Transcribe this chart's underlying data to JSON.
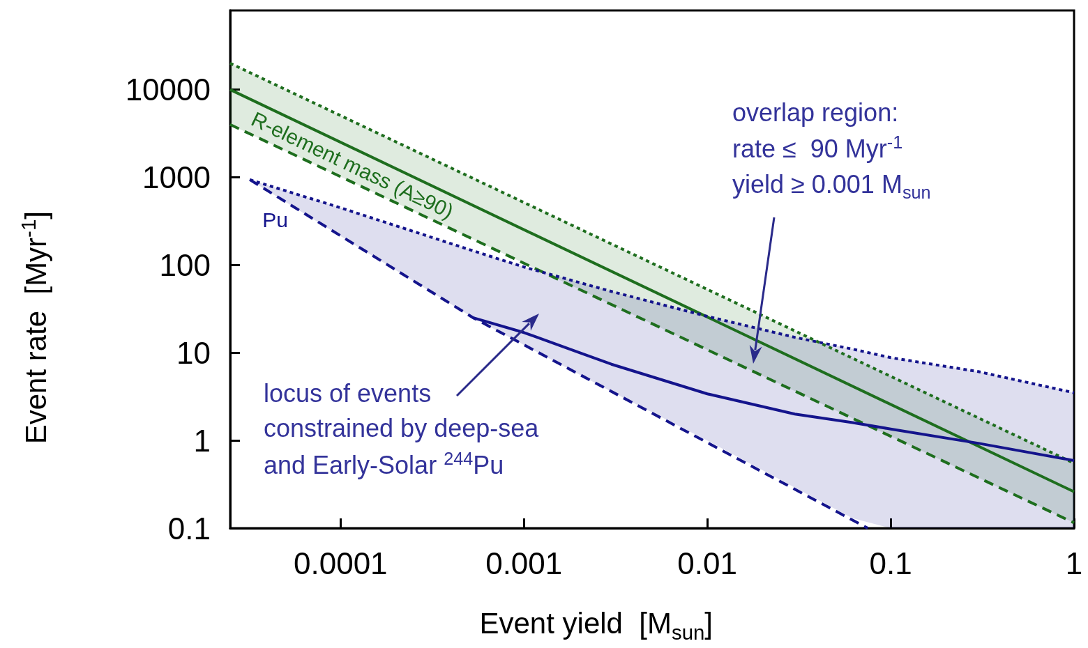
{
  "chart_data": {
    "type": "line",
    "xlabel": "Event yield  [M$_{sun}$]",
    "ylabel": "Event rate  [Myr$^{-1}$]",
    "log": "xy",
    "xlim": [
      2.5e-05,
      1
    ],
    "xticks": [
      0.0001,
      0.001,
      0.01,
      0.1,
      1
    ],
    "ylim": [
      0.1,
      80000
    ],
    "yticks": [
      0.1,
      1,
      10,
      100,
      1000,
      10000
    ],
    "grid": false,
    "legend": false,
    "marker": "none",
    "series": [
      {
        "color": "#1e6e1e",
        "line_style": "dotted",
        "x": [
          2.5e-05,
          1
        ],
        "values": [
          20000,
          0.55
        ]
      },
      {
        "color": "#1e6e1e",
        "line_style": "dashed",
        "x": [
          2.5e-05,
          1
        ],
        "values": [
          4000,
          0.115
        ]
      },
      {
        "name": "R-element mass (A≥90)",
        "color": "#1e6e1e",
        "line_style": "solid",
        "x": [
          2.5e-05,
          1
        ],
        "values": [
          10000,
          0.26
        ],
        "lower": [
          4000,
          0.115
        ],
        "upper": [
          20000,
          0.55
        ]
      },
      {
        "color": "#14148c",
        "line_style": "dotted",
        "x": [
          3.2e-05,
          0.0001,
          0.00053,
          0.001,
          0.003,
          0.01,
          0.03,
          0.062,
          0.1,
          0.3,
          1
        ],
        "values": [
          940,
          450,
          145,
          95,
          50,
          26,
          15,
          11,
          8.8,
          6.1,
          3.5
        ]
      },
      {
        "color": "#14148c",
        "line_style": "dashed",
        "x": [
          3.2e-05,
          0.00053,
          0.075
        ],
        "values": [
          940,
          25,
          0.1
        ]
      },
      {
        "name": "Pu",
        "color": "#14148c",
        "line_style": "solid",
        "x": [
          3.2e-05,
          0.0001,
          0.00053,
          0.001,
          0.003,
          0.01,
          0.03,
          0.062,
          0.1,
          0.3,
          1
        ],
        "values": [
          null,
          null,
          25,
          17,
          7.4,
          3.4,
          2.0,
          1.6,
          1.35,
          0.93,
          0.59
        ],
        "lower": [
          940,
          214,
          25,
          12.3,
          3.6,
          1.0,
          0.29,
          0.13,
          0.1,
          0.1,
          0.1
        ],
        "upper": [
          940,
          450,
          145,
          95,
          50,
          26,
          15,
          11,
          8.8,
          6.1,
          3.5
        ]
      }
    ],
    "annotations": [
      "locus of events\nconstrained by deep-sea\nand Early-Solar $^{244}$Pu",
      "overlap region:\nrate ≤  90 Myr$^{-1}$\nyield ≥ 0.001 M$_{sun}$"
    ]
  }
}
